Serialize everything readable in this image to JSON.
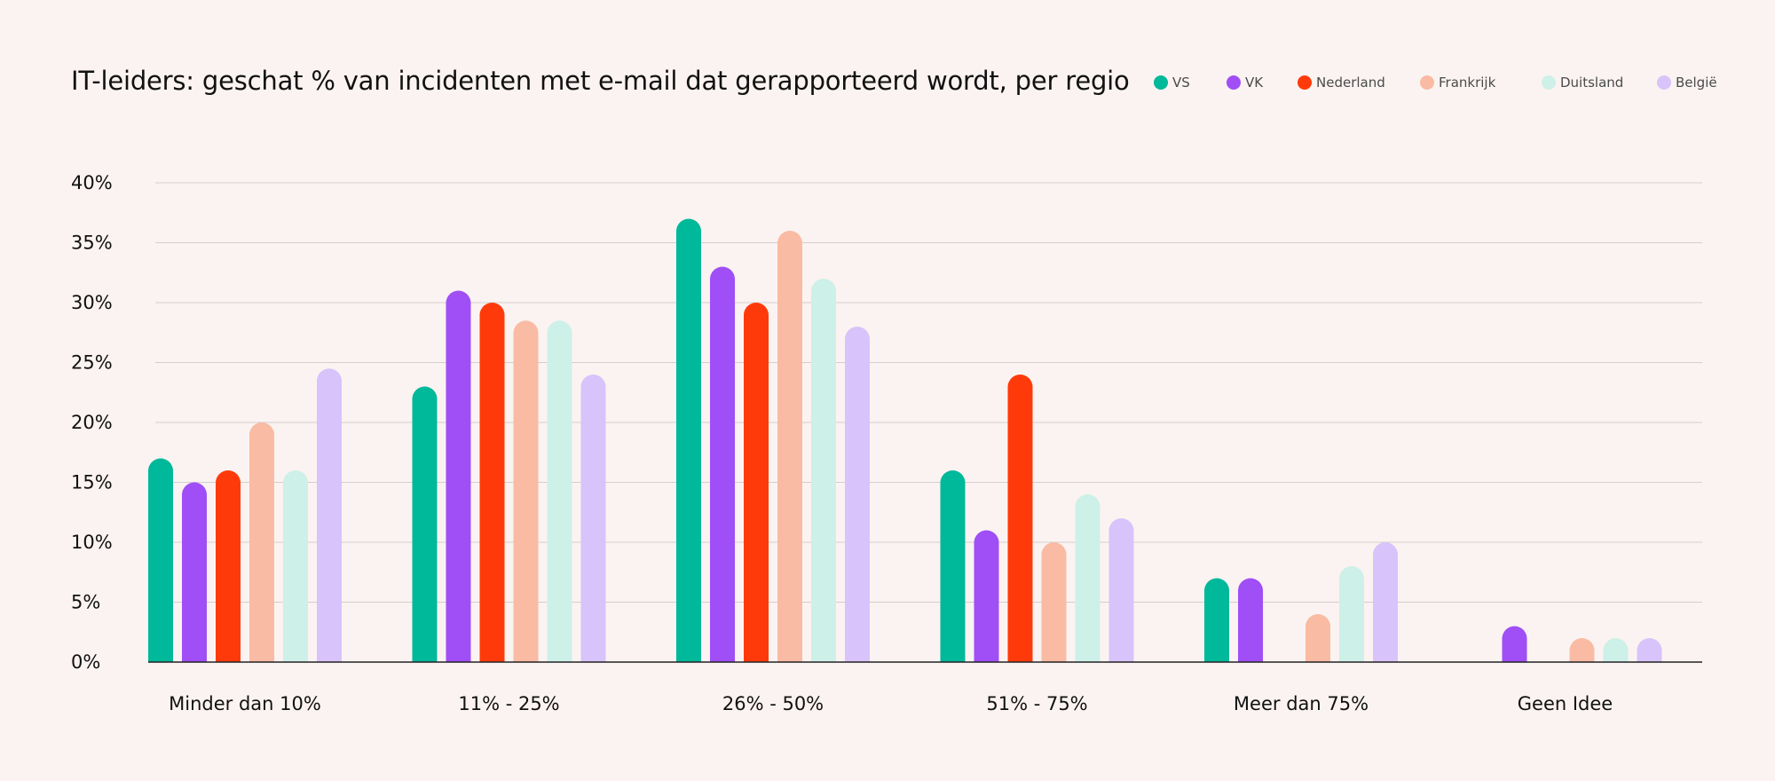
{
  "chart_data": {
    "type": "bar",
    "title": "IT-leiders: geschat % van incidenten met e-mail dat gerapporteerd wordt, per regio",
    "xlabel": "",
    "ylabel": "",
    "ylim": [
      0,
      40
    ],
    "yticks": [
      "0%",
      "5%",
      "10%",
      "15%",
      "20%",
      "25%",
      "30%",
      "35%",
      "40%"
    ],
    "ytick_values": [
      0,
      5,
      10,
      15,
      20,
      25,
      30,
      35,
      40
    ],
    "grid": true,
    "legend_position": "top-right",
    "categories": [
      "Minder dan 10%",
      "11% - 25%",
      "26% - 50%",
      "51% - 75%",
      "Meer dan 75%",
      "Geen Idee"
    ],
    "series": [
      {
        "name": "VS",
        "color": "#00b89a",
        "values": [
          17,
          23,
          37,
          16,
          7,
          0
        ]
      },
      {
        "name": "VK",
        "color": "#a04ef6",
        "values": [
          15,
          31,
          33,
          11,
          7,
          3
        ]
      },
      {
        "name": "Nederland",
        "color": "#ff3a0a",
        "values": [
          16,
          30,
          30,
          24,
          0,
          0
        ]
      },
      {
        "name": "Frankrijk",
        "color": "#f9bba3",
        "values": [
          20,
          28.5,
          36,
          10,
          4,
          2
        ]
      },
      {
        "name": "Duitsland",
        "color": "#cdf0e8",
        "values": [
          16,
          28.5,
          32,
          14,
          8,
          2
        ]
      },
      {
        "name": "België",
        "color": "#d8c3fb",
        "values": [
          24.5,
          24,
          28,
          12,
          10,
          2
        ]
      }
    ]
  }
}
